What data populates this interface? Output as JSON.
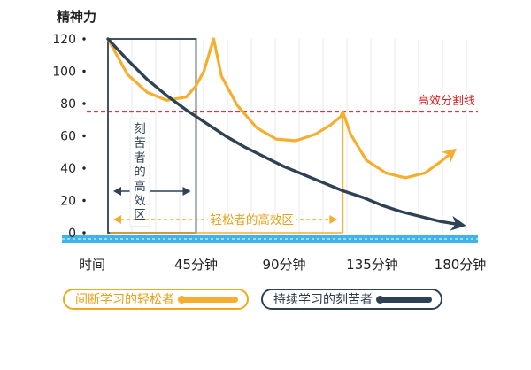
{
  "chart_data": {
    "type": "line",
    "ylabel": "精神力",
    "ylim": [
      0,
      120
    ],
    "xlim": [
      0,
      180
    ],
    "y_ticks": [
      0,
      20,
      40,
      60,
      80,
      100,
      120
    ],
    "x_ticks": [
      {
        "value": 0,
        "label": "时间"
      },
      {
        "value": 45,
        "label": "45分钟"
      },
      {
        "value": 90,
        "label": "90分钟"
      },
      {
        "value": 135,
        "label": "135分钟"
      },
      {
        "value": 180,
        "label": "180分钟"
      }
    ],
    "grid": true,
    "series": [
      {
        "name": "间断学习的轻松者",
        "color": "#f5ae2e",
        "points": [
          [
            0,
            120
          ],
          [
            10,
            98
          ],
          [
            20,
            87
          ],
          [
            30,
            82
          ],
          [
            40,
            84
          ],
          [
            45,
            91
          ],
          [
            49,
            100
          ],
          [
            52,
            112
          ],
          [
            54,
            120
          ],
          [
            58,
            97
          ],
          [
            66,
            79
          ],
          [
            76,
            65
          ],
          [
            86,
            58
          ],
          [
            96,
            57
          ],
          [
            106,
            61
          ],
          [
            114,
            67
          ],
          [
            119,
            72
          ],
          [
            120,
            75
          ],
          [
            124,
            61
          ],
          [
            132,
            45
          ],
          [
            142,
            37
          ],
          [
            152,
            34
          ],
          [
            162,
            37
          ],
          [
            170,
            44
          ],
          [
            176,
            50
          ]
        ]
      },
      {
        "name": "持续学习的刻苦者",
        "color": "#2f4154",
        "points": [
          [
            0,
            120
          ],
          [
            10,
            107
          ],
          [
            20,
            95
          ],
          [
            30,
            85
          ],
          [
            40,
            76
          ],
          [
            50,
            68
          ],
          [
            60,
            60
          ],
          [
            70,
            53
          ],
          [
            80,
            47
          ],
          [
            90,
            41
          ],
          [
            100,
            36
          ],
          [
            110,
            31
          ],
          [
            120,
            26
          ],
          [
            130,
            22
          ],
          [
            140,
            17
          ],
          [
            150,
            13
          ],
          [
            160,
            10
          ],
          [
            170,
            7
          ],
          [
            180,
            5
          ]
        ]
      }
    ],
    "annotations": [
      {
        "type": "hline",
        "y": 75,
        "color": "#e0191e",
        "label": "高效分割线"
      },
      {
        "type": "span",
        "x": [
          0,
          45
        ],
        "label": "刻苦者的高效区",
        "color": "#2f4154"
      },
      {
        "type": "span",
        "x": [
          0,
          120
        ],
        "label": "轻松者的高效区",
        "color": "#f5ae2e"
      }
    ],
    "legend_position": "bottom"
  }
}
